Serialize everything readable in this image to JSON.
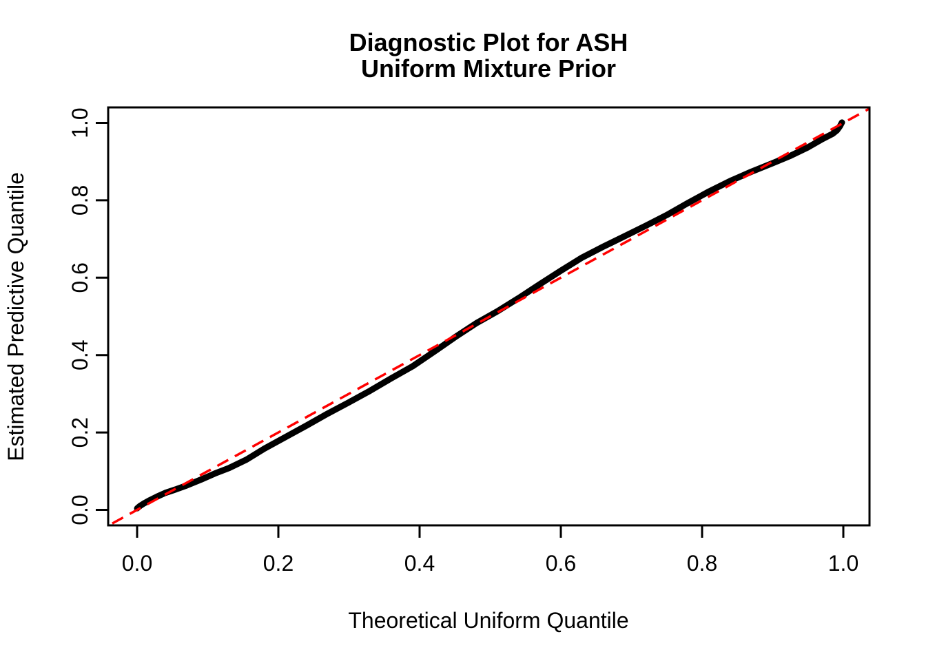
{
  "page": {
    "background": "#ffffff"
  },
  "chart_data": {
    "type": "scatter",
    "title_lines": [
      "Diagnostic Plot for ASH",
      "Uniform Mixture Prior"
    ],
    "xlabel": "Theoretical Uniform Quantile",
    "ylabel": "Estimated Predictive Quantile",
    "xlim": [
      0,
      1
    ],
    "ylim": [
      0,
      1
    ],
    "axis_expansion": 0.04,
    "grid": false,
    "legend": null,
    "x_ticks": [
      0.0,
      0.2,
      0.4,
      0.6,
      0.8,
      1.0
    ],
    "x_tick_labels": [
      "0.0",
      "0.2",
      "0.4",
      "0.6",
      "0.8",
      "1.0"
    ],
    "y_ticks": [
      0.0,
      0.2,
      0.4,
      0.6,
      0.8,
      1.0
    ],
    "y_tick_labels": [
      "0.0",
      "0.2",
      "0.4",
      "0.6",
      "0.8",
      "1.0"
    ],
    "colors": {
      "points": "#000000",
      "reference_line": "#ff0000",
      "axis": "#000000",
      "background": "#ffffff"
    },
    "reference_line": {
      "kind": "identity",
      "style": "dashed",
      "color": "#ff0000",
      "from": [
        0,
        0
      ],
      "to": [
        1,
        1
      ]
    },
    "series": [
      {
        "name": "estimated-vs-theoretical-quantiles",
        "color": "#000000",
        "points": [
          [
            0.0,
            0.004
          ],
          [
            0.004,
            0.01
          ],
          [
            0.01,
            0.017
          ],
          [
            0.018,
            0.025
          ],
          [
            0.028,
            0.034
          ],
          [
            0.04,
            0.044
          ],
          [
            0.055,
            0.053
          ],
          [
            0.07,
            0.063
          ],
          [
            0.09,
            0.078
          ],
          [
            0.11,
            0.094
          ],
          [
            0.13,
            0.108
          ],
          [
            0.155,
            0.13
          ],
          [
            0.18,
            0.158
          ],
          [
            0.21,
            0.188
          ],
          [
            0.24,
            0.218
          ],
          [
            0.27,
            0.249
          ],
          [
            0.3,
            0.278
          ],
          [
            0.33,
            0.308
          ],
          [
            0.36,
            0.34
          ],
          [
            0.39,
            0.371
          ],
          [
            0.42,
            0.408
          ],
          [
            0.45,
            0.446
          ],
          [
            0.48,
            0.482
          ],
          [
            0.51,
            0.513
          ],
          [
            0.54,
            0.547
          ],
          [
            0.57,
            0.583
          ],
          [
            0.6,
            0.618
          ],
          [
            0.63,
            0.652
          ],
          [
            0.66,
            0.68
          ],
          [
            0.69,
            0.707
          ],
          [
            0.72,
            0.734
          ],
          [
            0.75,
            0.762
          ],
          [
            0.78,
            0.793
          ],
          [
            0.81,
            0.823
          ],
          [
            0.84,
            0.85
          ],
          [
            0.87,
            0.874
          ],
          [
            0.9,
            0.896
          ],
          [
            0.925,
            0.915
          ],
          [
            0.95,
            0.937
          ],
          [
            0.97,
            0.958
          ],
          [
            0.985,
            0.972
          ],
          [
            0.991,
            0.981
          ],
          [
            0.995,
            0.991
          ],
          [
            0.998,
            1.001
          ]
        ]
      }
    ]
  }
}
